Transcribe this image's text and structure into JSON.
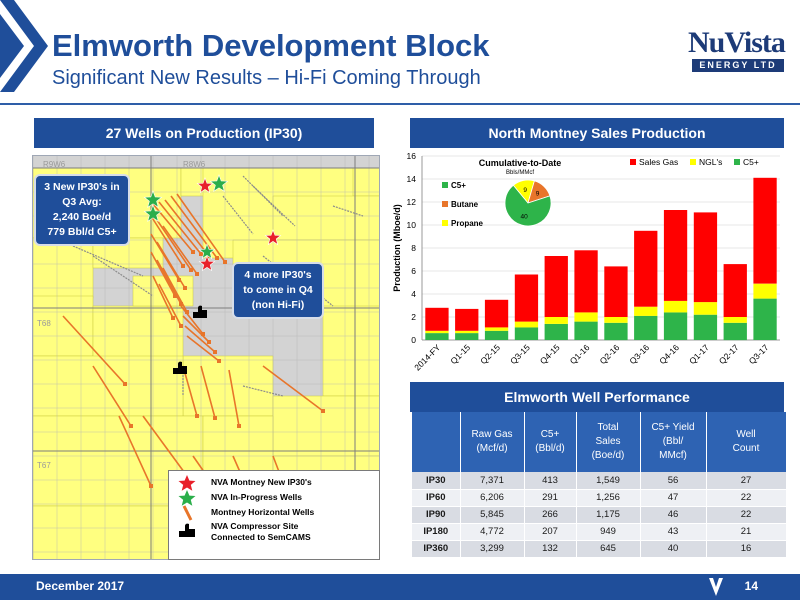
{
  "header": {
    "title": "Elmworth Development Block",
    "subtitle": "Significant New Results – Hi-Fi Coming Through",
    "logo_main": "NuVista",
    "logo_sub": "ENERGY LTD"
  },
  "map_panel": {
    "heading": "27 Wells on Production (IP30)",
    "grid_labels": [
      "R9W6",
      "R8W6",
      "T68",
      "T67"
    ],
    "callout_new": [
      "3 New IP30's in",
      "Q3 Avg:",
      "2,240 Boe/d",
      "779 Bbl/d C5+"
    ],
    "callout_more": [
      "4 more IP30's",
      "to come in Q4",
      "(non Hi-Fi)"
    ],
    "legend": [
      {
        "label": "NVA Montney  New IP30's",
        "icon": "red-star-icon",
        "color": "#e8202a"
      },
      {
        "label": "NVA In-Progress Wells",
        "icon": "green-star-icon",
        "color": "#2bae4a"
      },
      {
        "label": "Montney Horizontal Wells",
        "icon": "well-line-icon",
        "color": "#e8752a"
      },
      {
        "label": "NVA Compressor Site",
        "icon": "compressor-icon",
        "color": "#000000"
      },
      {
        "label": "Connected to SemCAMS",
        "icon": "",
        "color": ""
      }
    ]
  },
  "chart_panel": {
    "heading": "North Montney Sales Production"
  },
  "chart_data": [
    {
      "type": "bar",
      "stacked": true,
      "title": "",
      "xlabel": "",
      "ylabel": "Production (Mboe/d)",
      "ylim": [
        0,
        16
      ],
      "yticks": [
        0,
        2,
        4,
        6,
        8,
        10,
        12,
        14,
        16
      ],
      "grid": true,
      "legend_position": "top-right",
      "categories": [
        "2014-FY",
        "Q1-15",
        "Q2-15",
        "Q3-15",
        "Q4-15",
        "Q1-16",
        "Q2-16",
        "Q3-16",
        "Q4-16",
        "Q1-17",
        "Q2-17",
        "Q3-17"
      ],
      "series": [
        {
          "name": "Sales Gas",
          "color": "#ff0000",
          "values": [
            2.0,
            1.9,
            2.4,
            4.1,
            5.3,
            5.4,
            4.4,
            6.6,
            7.9,
            7.8,
            4.6,
            9.2
          ]
        },
        {
          "name": "NGL's",
          "color": "#ffff00",
          "values": [
            0.2,
            0.2,
            0.3,
            0.5,
            0.6,
            0.8,
            0.5,
            0.8,
            1.0,
            1.1,
            0.5,
            1.3
          ]
        },
        {
          "name": "C5+",
          "color": "#2eb44a",
          "values": [
            0.6,
            0.6,
            0.8,
            1.1,
            1.4,
            1.6,
            1.5,
            2.1,
            2.4,
            2.2,
            1.5,
            3.6
          ]
        }
      ]
    },
    {
      "type": "pie",
      "title": "Cumulative-to-Date",
      "subtitle": "Bbls/MMcf",
      "slices": [
        {
          "name": "C5+",
          "value": 40,
          "color": "#2eb44a"
        },
        {
          "name": "Butane",
          "value": 9,
          "color": "#e8752a"
        },
        {
          "name": "Propane",
          "value": 9,
          "color": "#ffff00"
        }
      ]
    }
  ],
  "table_panel": {
    "heading": "Elmworth Well Performance",
    "columns": [
      {
        "lines": [
          ""
        ]
      },
      {
        "lines": [
          "Raw Gas",
          "(Mcf/d)"
        ]
      },
      {
        "lines": [
          "C5+",
          "(Bbl/d)"
        ]
      },
      {
        "lines": [
          "Total",
          "Sales",
          "(Boe/d)"
        ]
      },
      {
        "lines": [
          "C5+ Yield",
          "(Bbl/",
          "MMcf)"
        ]
      },
      {
        "lines": [
          "Well",
          "Count"
        ]
      }
    ],
    "rows": [
      [
        "IP30",
        "7,371",
        "413",
        "1,549",
        "56",
        "27"
      ],
      [
        "IP60",
        "6,206",
        "291",
        "1,256",
        "47",
        "22"
      ],
      [
        "IP90",
        "5,845",
        "266",
        "1,175",
        "46",
        "22"
      ],
      [
        "IP180",
        "4,772",
        "207",
        "949",
        "43",
        "21"
      ],
      [
        "IP360",
        "3,299",
        "132",
        "645",
        "40",
        "16"
      ]
    ]
  },
  "footer": {
    "date": "December 2017",
    "page": "14"
  }
}
